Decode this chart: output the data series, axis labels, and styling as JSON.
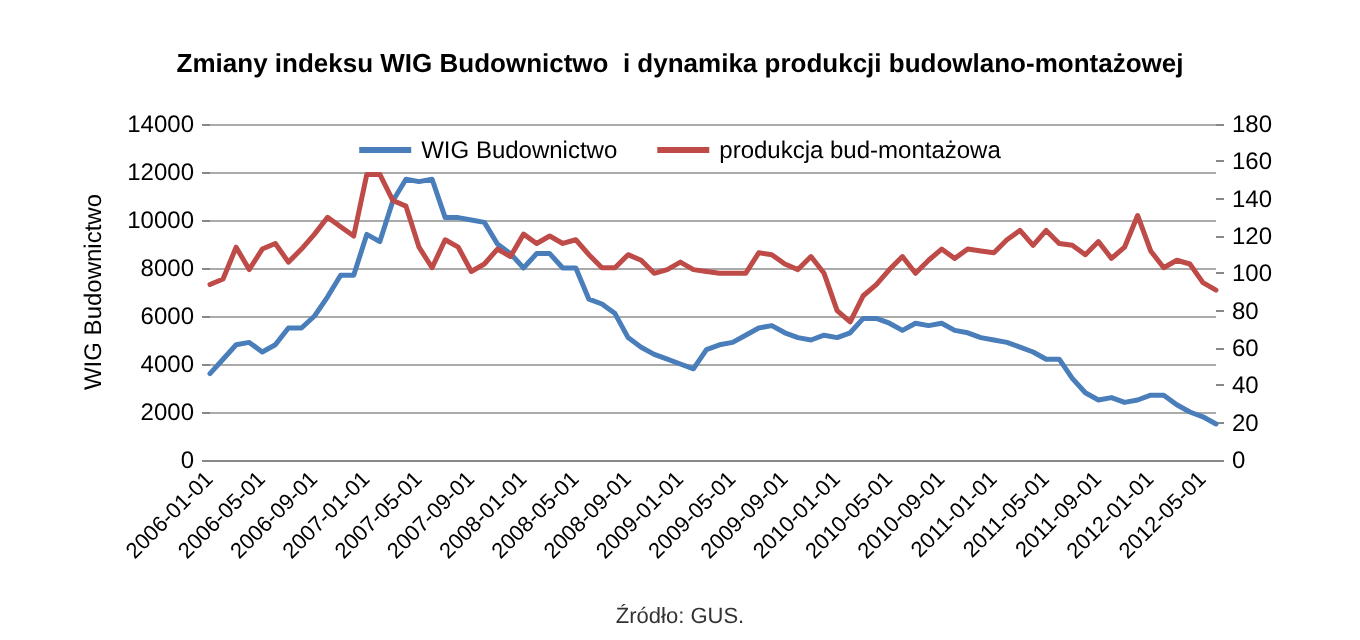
{
  "chart_data": {
    "type": "line",
    "title": "Zmiany indeksu WIG Budownictwo  i dynamika produkcji budowlano-montażowej",
    "ylabel": "WIG Budownictwo",
    "annotations": [
      "Źródło: GUS."
    ],
    "categories": [
      "2006-01-01",
      null,
      null,
      null,
      "2006-05-01",
      null,
      null,
      null,
      "2006-09-01",
      null,
      null,
      null,
      "2007-01-01",
      null,
      null,
      null,
      "2007-05-01",
      null,
      null,
      null,
      "2007-09-01",
      null,
      null,
      null,
      "2008-01-01",
      null,
      null,
      null,
      "2008-05-01",
      null,
      null,
      null,
      "2008-09-01",
      null,
      null,
      null,
      "2009-01-01",
      null,
      null,
      null,
      "2009-05-01",
      null,
      null,
      null,
      "2009-09-01",
      null,
      null,
      null,
      "2010-01-01",
      null,
      null,
      null,
      "2010-05-01",
      null,
      null,
      null,
      "2010-09-01",
      null,
      null,
      null,
      "2011-01-01",
      null,
      null,
      null,
      "2011-05-01",
      null,
      null,
      null,
      "2011-09-01",
      null,
      null,
      null,
      "2012-01-01",
      null,
      null,
      null,
      "2012-05-01",
      null
    ],
    "series": [
      {
        "name": "WIG Budownictwo",
        "color": "#4a7ebb",
        "values": [
          3600,
          4200,
          4800,
          4900,
          4500,
          4800,
          5500,
          5500,
          6000,
          6800,
          7700,
          7700,
          9400,
          9100,
          10800,
          11700,
          11600,
          11700,
          10100,
          10100,
          10000,
          9900,
          9000,
          8600,
          8000,
          8600,
          8600,
          8000,
          8000,
          6700,
          6500,
          6100,
          5100,
          4700,
          4400,
          4200,
          4000,
          3800,
          4600,
          4800,
          4900,
          5200,
          5500,
          5600,
          5300,
          5100,
          5000,
          5200,
          5100,
          5300,
          5900,
          5900,
          5700,
          5400,
          5700,
          5600,
          5700,
          5400,
          5300,
          5100,
          5000,
          4900,
          4700,
          4500,
          4200,
          4200,
          3400,
          2800,
          2500,
          2600,
          2400,
          2500,
          2700,
          2700,
          2300,
          2000,
          1800,
          1500
        ]
      },
      {
        "name": "produkcja bud-montażowa",
        "color": "#be4b48",
        "axis": "y2",
        "values": [
          94,
          97,
          114,
          102,
          113,
          116,
          106,
          113,
          121,
          130,
          125,
          120,
          153,
          153,
          139,
          136,
          114,
          103,
          118,
          114,
          101,
          105,
          113,
          109,
          121,
          116,
          120,
          116,
          118,
          110,
          103,
          103,
          110,
          107,
          100,
          102,
          106,
          102,
          101,
          100,
          100,
          100,
          111,
          110,
          105,
          102,
          109,
          100,
          80,
          74,
          88,
          94,
          102,
          109,
          100,
          107,
          113,
          108,
          113,
          112,
          111,
          118,
          123,
          115,
          123,
          116,
          115,
          110,
          117,
          108,
          114,
          131,
          112,
          103,
          107,
          105,
          95,
          91
        ]
      }
    ],
    "ylim": [
      0,
      14000
    ],
    "yticks": [
      0,
      2000,
      4000,
      6000,
      8000,
      10000,
      12000,
      14000
    ],
    "y2lim": [
      0,
      180
    ],
    "y2ticks": [
      0,
      20,
      40,
      60,
      80,
      100,
      120,
      140,
      160,
      180
    ],
    "grid": "y",
    "legend": "top",
    "marker": "none",
    "line_style": "solid"
  }
}
